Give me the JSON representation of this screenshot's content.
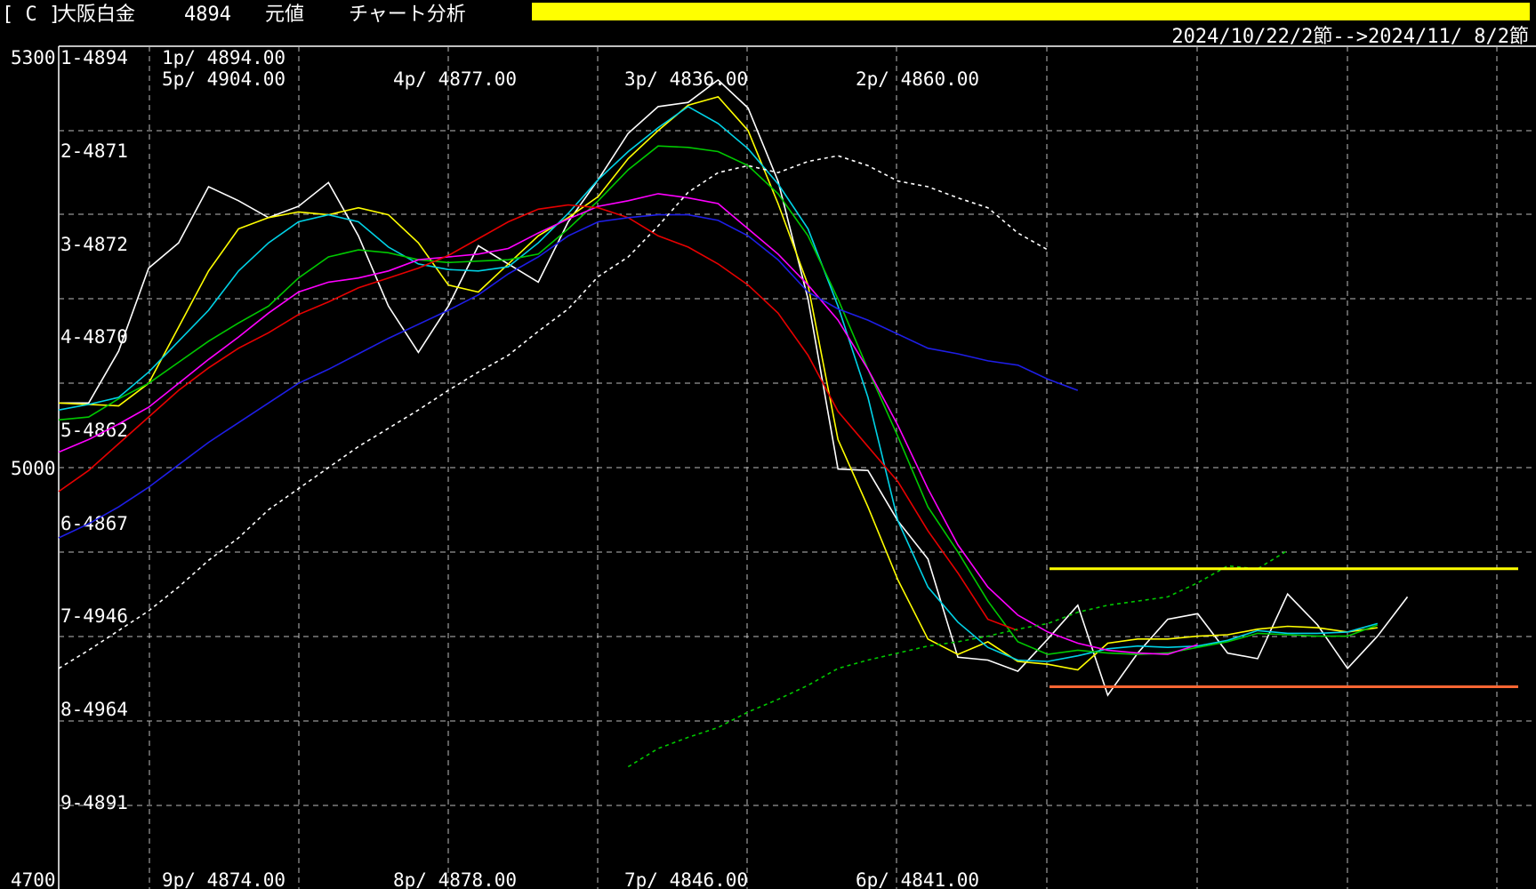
{
  "header": {
    "tag": "[ C ]",
    "instrument": "大阪白金",
    "price": "4894",
    "mode": "元値",
    "tool": "チャート分析",
    "highlight_color": "#ffff00"
  },
  "range_text": "2024/10/22/2節-->2024/11/ 8/2節",
  "y_labels": {
    "top": "5300",
    "mid": "5000",
    "bottom": "4700"
  },
  "board_labels": [
    "1-4894",
    "2-4871",
    "3-4872",
    "4-4870",
    "5-4862",
    "6-4867",
    "7-4946",
    "8-4964",
    "9-4891"
  ],
  "top_prices": [
    "1p/ 4894.00",
    "5p/ 4904.00",
    "4p/ 4877.00",
    "3p/ 4836.00",
    "2p/ 4860.00"
  ],
  "bottom_prices": [
    "9p/ 4874.00",
    "8p/ 4878.00",
    "7p/ 4846.00",
    "6p/ 4841.00"
  ],
  "chart_data": {
    "type": "line",
    "ylim": [
      4700,
      5300
    ],
    "x_count": 50,
    "series": [
      {
        "color": "#ffffff",
        "dashed": false,
        "start": 0,
        "values": [
          5046,
          5046,
          5083,
          5142,
          5160,
          5200,
          5190,
          5178,
          5186,
          5203,
          5165,
          5115,
          5082,
          5115,
          5158,
          5145,
          5132,
          5175,
          5205,
          5238,
          5257,
          5260,
          5276,
          5256,
          5204,
          5120,
          4999,
          4998,
          4962,
          4935,
          4865,
          4863,
          4855,
          4878,
          4902,
          4838,
          4868,
          4892,
          4896,
          4868,
          4864,
          4910,
          4888,
          4857,
          4880,
          4908
        ]
      },
      {
        "color": "#ffff00",
        "dashed": false,
        "start": 0,
        "values": [
          5046,
          5045,
          5044,
          5060,
          5100,
          5140,
          5170,
          5178,
          5182,
          5180,
          5185,
          5180,
          5160,
          5130,
          5125,
          5145,
          5165,
          5178,
          5193,
          5220,
          5240,
          5258,
          5264,
          5240,
          5188,
          5130,
          5020,
          4972,
          4920,
          4878,
          4867,
          4876,
          4862,
          4860,
          4856,
          4875,
          4878,
          4878,
          4880,
          4881,
          4885,
          4887,
          4886,
          4883,
          4886
        ]
      },
      {
        "color": "#00d2e6",
        "dashed": false,
        "start": 0,
        "values": [
          5041,
          5045,
          5050,
          5068,
          5090,
          5112,
          5140,
          5160,
          5175,
          5180,
          5175,
          5157,
          5145,
          5141,
          5140,
          5143,
          5160,
          5181,
          5205,
          5225,
          5242,
          5257,
          5245,
          5227,
          5202,
          5170,
          5115,
          5050,
          4962,
          4915,
          4890,
          4872,
          4863,
          4862,
          4866,
          4871,
          4873,
          4872,
          4873,
          4877,
          4884,
          4882,
          4882,
          4883,
          4889
        ]
      },
      {
        "color": "#00c800",
        "dashed": false,
        "start": 0,
        "values": [
          5034,
          5036,
          5049,
          5060,
          5075,
          5090,
          5103,
          5115,
          5135,
          5150,
          5155,
          5153,
          5148,
          5146,
          5147,
          5148,
          5152,
          5170,
          5190,
          5212,
          5229,
          5228,
          5225,
          5215,
          5195,
          5165,
          5120,
          5070,
          5022,
          4972,
          4940,
          4905,
          4876,
          4867,
          4870,
          4868,
          4867,
          4868,
          4872,
          4876,
          4882,
          4881,
          4880,
          4880,
          4888
        ]
      },
      {
        "color": "#ff00ff",
        "dashed": false,
        "start": 0,
        "values": [
          5011,
          5020,
          5031,
          5043,
          5060,
          5077,
          5093,
          5110,
          5125,
          5132,
          5135,
          5140,
          5148,
          5150,
          5152,
          5156,
          5167,
          5177,
          5186,
          5190,
          5195,
          5192,
          5188,
          5170,
          5152,
          5130,
          5105,
          5070,
          5030,
          4985,
          4945,
          4915,
          4895,
          4883,
          4875,
          4870,
          4868,
          4867,
          4874
        ]
      },
      {
        "color": "#e60000",
        "dashed": false,
        "start": 0,
        "values": [
          4983,
          4998,
          5017,
          5036,
          5055,
          5071,
          5085,
          5096,
          5109,
          5118,
          5128,
          5135,
          5142,
          5151,
          5163,
          5175,
          5184,
          5187,
          5185,
          5178,
          5165,
          5157,
          5145,
          5130,
          5110,
          5080,
          5040,
          5015,
          4990,
          4955,
          4925,
          4892,
          4884
        ]
      },
      {
        "color": "#1e1ee6, 0",
        "dashed": false,
        "start": 0,
        "values": [
          4950,
          4960,
          4972,
          4986,
          5002,
          5018,
          5032,
          5046,
          5060,
          5070,
          5081,
          5092,
          5102,
          5112,
          5123,
          5138,
          5150,
          5165,
          5175,
          5178,
          5180,
          5180,
          5176,
          5165,
          5148,
          5125,
          5113,
          5105,
          5095,
          5085,
          5081,
          5076,
          5073,
          5063,
          5055
        ]
      },
      {
        "color": "#ffffff",
        "dashed": true,
        "start": 0,
        "values": [
          4857,
          4870,
          4884,
          4898,
          4915,
          4934,
          4950,
          4970,
          4985,
          5000,
          5015,
          5028,
          5041,
          5055,
          5068,
          5080,
          5097,
          5113,
          5136,
          5150,
          5172,
          5196,
          5210,
          5215,
          5210,
          5218,
          5222,
          5215,
          5204,
          5200,
          5192,
          5185,
          5167,
          5155
        ]
      },
      {
        "color": "#00c800",
        "dashed": true,
        "start": 19,
        "values": [
          4787,
          4800,
          4808,
          4815,
          4826,
          4835,
          4845,
          4857,
          4863,
          4868,
          4873,
          4876,
          4880,
          4885,
          4889,
          4897,
          4902,
          4905,
          4908,
          4918,
          4930,
          4928,
          4941
        ]
      },
      {
        "color": "#ffff00",
        "dashed": false,
        "start": 0,
        "values": [
          4928,
          4928
        ]
      },
      {
        "color": "#ff6633",
        "dashed": false,
        "start": 0,
        "values": [
          4844,
          4844
        ]
      }
    ]
  }
}
